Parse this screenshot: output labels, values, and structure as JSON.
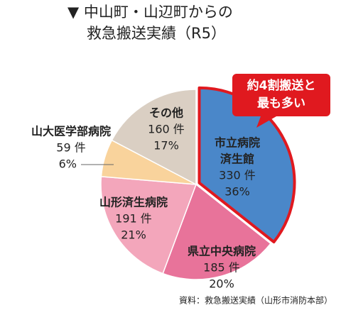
{
  "chart_data": {
    "type": "pie",
    "title": [
      "▼ 中山町・山辺町からの",
      "救急搬送実績（R5）"
    ],
    "categories": [
      [
        "市立病院",
        "済生館"
      ],
      [
        "県立中央病院"
      ],
      [
        "山形済生病院"
      ],
      [
        "山大医学部病院"
      ],
      [
        "その他"
      ]
    ],
    "values": [
      330,
      185,
      191,
      59,
      160
    ],
    "value_labels": [
      "330 件",
      "185 件",
      "191 件",
      "59 件",
      "160 件"
    ],
    "share_labels": [
      "36%",
      "20%",
      "21%",
      "6%",
      "17%"
    ],
    "colors": [
      "#4a87c9",
      "#e8739a",
      "#f3a6bb",
      "#f9d39c",
      "#dacfc3"
    ],
    "highlight_color": "#e0191f",
    "annotation": [
      "約4割搬送と",
      "最も多い"
    ],
    "source": "資料：救急搬送実績（山形市消防本部）"
  }
}
